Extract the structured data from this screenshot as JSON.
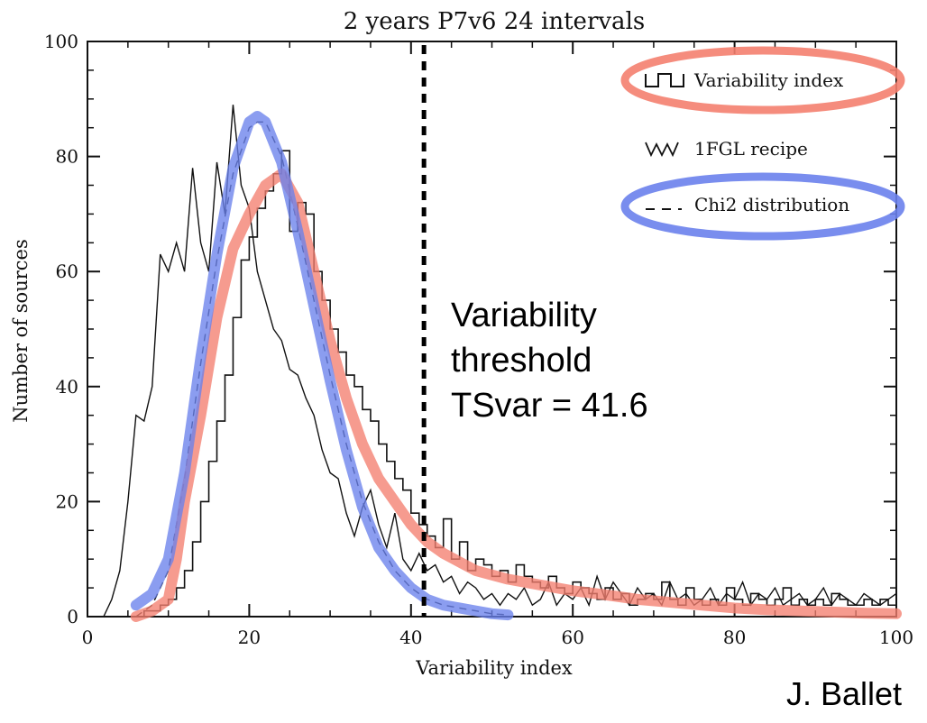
{
  "chart_data": {
    "type": "line",
    "title": "2 years P7v6 24 intervals",
    "xlabel": "Variability index",
    "ylabel": "Number of sources",
    "xlim": [
      0,
      100
    ],
    "ylim": [
      0,
      100
    ],
    "x_ticks": [
      "0",
      "20",
      "40",
      "60",
      "80",
      "100"
    ],
    "y_ticks": [
      "0",
      "20",
      "40",
      "60",
      "80",
      "100"
    ],
    "legend_placement": "top-right",
    "legend": [
      {
        "label": "Variability index",
        "style": "histogram",
        "highlight": "#f08070"
      },
      {
        "label": "1FGL recipe",
        "style": "jagged-line",
        "highlight": ""
      },
      {
        "label": "Chi2 distribution",
        "style": "dashed",
        "highlight": "#6f84e8"
      }
    ],
    "series": [
      {
        "name": "Variability index",
        "style": "histogram",
        "x": [
          6,
          7,
          8,
          9,
          10,
          11,
          12,
          13,
          14,
          15,
          16,
          17,
          18,
          19,
          20,
          21,
          22,
          23,
          24,
          25,
          26,
          27,
          28,
          29,
          30,
          31,
          32,
          33,
          34,
          35,
          36,
          37,
          38,
          39,
          40,
          41,
          42,
          43,
          44,
          45,
          46,
          47,
          48,
          49,
          50,
          51,
          52,
          53,
          54,
          55,
          56,
          57,
          58,
          59,
          60,
          61,
          62,
          63,
          64,
          65,
          66,
          67,
          68,
          69,
          70,
          71,
          72,
          73,
          74,
          75,
          76,
          77,
          78,
          79,
          80,
          81,
          82,
          83,
          84,
          85,
          86,
          87,
          88,
          89,
          90,
          91,
          92,
          93,
          94,
          95,
          96,
          97,
          98,
          99
        ],
        "y": [
          0,
          1,
          1,
          2,
          3,
          5,
          8,
          13,
          20,
          27,
          34,
          42,
          52,
          62,
          66,
          71,
          74,
          77,
          81,
          67,
          72,
          70,
          60,
          55,
          50,
          46,
          42,
          40,
          36,
          34,
          30,
          27,
          24,
          22,
          18,
          16,
          14,
          12,
          17,
          10,
          13,
          8,
          10,
          9,
          7,
          8,
          6,
          9,
          7,
          6,
          5,
          7,
          5,
          4,
          6,
          5,
          4,
          3,
          5,
          3,
          4,
          2,
          3,
          4,
          3,
          6,
          3,
          2,
          5,
          3,
          2,
          3,
          2,
          5,
          3,
          2,
          4,
          3,
          2,
          3,
          5,
          2,
          3,
          2,
          3,
          2,
          4,
          3,
          2,
          2,
          3,
          2,
          3,
          2
        ]
      },
      {
        "name": "1FGL recipe",
        "style": "jagged-line",
        "x": [
          2,
          3,
          4,
          5,
          6,
          7,
          8,
          9,
          10,
          11,
          12,
          13,
          14,
          15,
          16,
          17,
          18,
          19,
          20,
          21,
          22,
          23,
          24,
          25,
          26,
          27,
          28,
          29,
          30,
          31,
          32,
          33,
          34,
          35,
          36,
          37,
          38,
          39,
          40,
          41,
          42,
          43,
          44,
          45,
          46,
          47,
          48,
          49,
          50,
          51,
          52,
          53,
          54,
          55,
          56,
          57,
          58,
          59,
          60,
          61,
          62,
          63,
          64,
          65,
          66,
          67,
          68,
          69,
          70,
          71,
          72,
          73,
          74,
          75,
          76,
          77,
          78,
          79,
          80,
          81,
          82,
          83,
          84,
          85,
          86,
          87,
          88,
          89,
          90,
          91,
          92,
          93,
          94,
          95,
          96,
          97,
          98,
          99,
          100
        ],
        "y": [
          0,
          3,
          8,
          20,
          35,
          34,
          40,
          63,
          60,
          65,
          60,
          78,
          65,
          60,
          79,
          70,
          89,
          75,
          71,
          60,
          55,
          50,
          48,
          43,
          42,
          38,
          35,
          29,
          25,
          24,
          18,
          14,
          19,
          22,
          16,
          12,
          18,
          10,
          8,
          11,
          8,
          9,
          6,
          7,
          4,
          6,
          5,
          3,
          4,
          2,
          4,
          3,
          5,
          2,
          3,
          6,
          2,
          4,
          3,
          5,
          2,
          7,
          3,
          6,
          4,
          2,
          5,
          3,
          4,
          2,
          6,
          3,
          4,
          2,
          3,
          5,
          2,
          4,
          3,
          6,
          2,
          4,
          3,
          5,
          2,
          3,
          4,
          2,
          3,
          5,
          2,
          4,
          3,
          2,
          4,
          3,
          2,
          3,
          4
        ]
      },
      {
        "name": "Chi2 distribution",
        "style": "dashed",
        "x": [
          6,
          8,
          10,
          12,
          14,
          16,
          18,
          20,
          21,
          22,
          24,
          26,
          28,
          30,
          32,
          34,
          36,
          38,
          40,
          42,
          44,
          46,
          48,
          50,
          52
        ],
        "y": [
          0,
          2,
          8,
          24,
          44,
          62,
          77,
          85,
          86,
          86,
          80,
          68,
          55,
          42,
          30,
          20,
          13,
          8,
          5,
          3,
          2,
          1.5,
          1,
          0.5,
          0.3
        ]
      }
    ],
    "highlight_curves": [
      {
        "color": "#f47f6f",
        "label": "",
        "x": [
          6,
          8,
          10,
          11,
          12,
          14,
          16,
          18,
          20,
          22,
          24,
          26,
          28,
          30,
          32,
          34,
          36,
          38,
          40,
          42,
          44,
          48,
          52,
          56,
          60,
          64,
          68,
          72,
          76,
          80,
          84,
          88,
          92,
          96,
          100
        ],
        "y": [
          0,
          1,
          3,
          10,
          20,
          35,
          52,
          64,
          70,
          75,
          77,
          72,
          60,
          48,
          38,
          30,
          24,
          20,
          16,
          13,
          11,
          8,
          6.5,
          5.5,
          4.5,
          3.8,
          3,
          2.5,
          2,
          1.5,
          1.2,
          1,
          0.8,
          0.6,
          0.5
        ]
      },
      {
        "color": "#6a81ec",
        "label": "",
        "x": [
          6,
          8,
          10,
          12,
          14,
          16,
          18,
          20,
          21,
          22,
          24,
          26,
          28,
          30,
          32,
          34,
          36,
          38,
          40,
          42,
          44,
          46,
          48,
          50,
          52
        ],
        "y": [
          2,
          4,
          10,
          25,
          45,
          63,
          78,
          86,
          87,
          86,
          79,
          67,
          54,
          41,
          29,
          19,
          12,
          8,
          5,
          3,
          2,
          1.5,
          1,
          0.5,
          0.3
        ]
      }
    ],
    "threshold": {
      "x": 41.6,
      "lines": [
        "Variability",
        "threshold",
        "TSvar = 41.6"
      ]
    },
    "credit": "J. Ballet"
  }
}
